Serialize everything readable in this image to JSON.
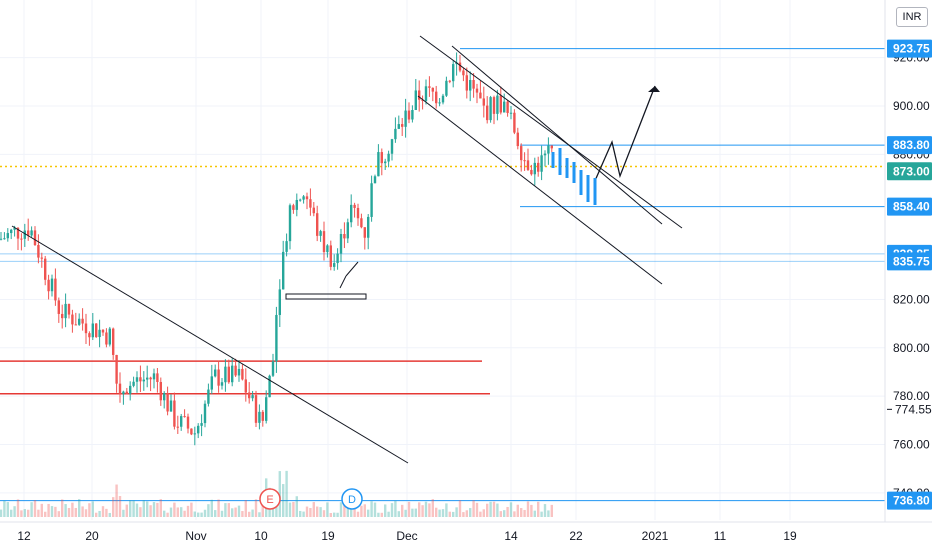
{
  "currency_label": "INR",
  "chart_data": {
    "type": "candlestick",
    "y_scale": {
      "min": 730,
      "max": 932,
      "ticks": [
        920.0,
        900.0,
        880.0,
        820.0,
        800.0,
        780.0,
        760.0,
        740.0
      ]
    },
    "x_ticks": [
      "12",
      "20",
      "Nov",
      "10",
      "19",
      "Dec",
      "14",
      "22",
      "2021",
      "11",
      "19"
    ],
    "highlighted_prices": [
      {
        "label": "923.75",
        "value": 923.75,
        "color": "#2196f3"
      },
      {
        "label": "883.80",
        "value": 883.8,
        "color": "#2196f3"
      },
      {
        "label": "873.00",
        "value": 873.0,
        "color": "#26a69a"
      },
      {
        "label": "858.40",
        "value": 858.4,
        "color": "#2196f3"
      },
      {
        "label": "838.85",
        "value": 838.85,
        "color": "#2196f3"
      },
      {
        "label": "835.75",
        "value": 835.75,
        "color": "#2196f3"
      },
      {
        "label": "736.80",
        "value": 736.8,
        "color": "#2196f3"
      }
    ],
    "cursor_price": {
      "label": "774.55",
      "value": 774.55
    },
    "red_levels": [
      794.5,
      781.0
    ],
    "dotted_price": 875.0,
    "events": [
      {
        "label": "E"
      },
      {
        "label": "D"
      }
    ],
    "colors": {
      "up": "#26a69a",
      "down": "#ef5350",
      "projection": "#2196f3",
      "level": "#2196f3",
      "support": "#e53935"
    }
  }
}
